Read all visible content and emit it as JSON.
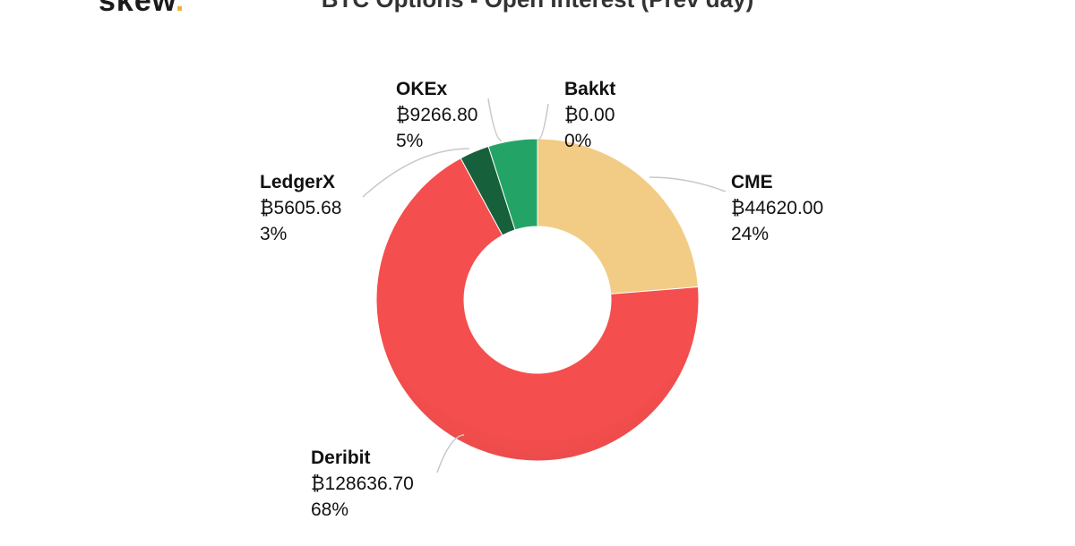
{
  "header": {
    "logo_text": "skew",
    "logo_dot": "."
  },
  "chart_data": {
    "type": "pie",
    "title": "BTC Options - Open Interest (Prev day)",
    "donut": true,
    "series": [
      {
        "name": "CME",
        "value_label": "₿44620.00",
        "value": 44620.0,
        "percent": "24%",
        "color": "#f2cc85"
      },
      {
        "name": "Deribit",
        "value_label": "₿128636.70",
        "value": 128636.7,
        "percent": "68%",
        "color": "#f54e4e"
      },
      {
        "name": "LedgerX",
        "value_label": "₿5605.68",
        "value": 5605.68,
        "percent": "3%",
        "color": "#17603c"
      },
      {
        "name": "OKEx",
        "value_label": "₿9266.80",
        "value": 9266.8,
        "percent": "5%",
        "color": "#23a466"
      },
      {
        "name": "Bakkt",
        "value_label": "₿0.00",
        "value": 0.0,
        "percent": "0%",
        "color": "#2f7bd6"
      }
    ]
  }
}
